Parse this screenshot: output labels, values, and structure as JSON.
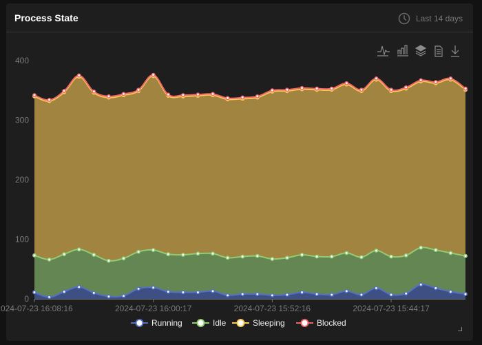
{
  "header": {
    "title": "Process State",
    "range_label": "Last 14 days",
    "range_icon": "clock-icon"
  },
  "toolbar": {
    "icons": [
      "line-chart-icon",
      "bar-chart-icon",
      "stack-icon",
      "data-view-icon",
      "download-icon"
    ]
  },
  "chart_data": {
    "type": "area",
    "stacked": true,
    "smooth": true,
    "ylim": [
      0,
      400
    ],
    "yticks": [
      "0",
      "100",
      "200",
      "300",
      "400"
    ],
    "xtick_labels": [
      "2024-07-23 16:08:16",
      "2024-07-23 16:00:17",
      "2024-07-23 15:52:16",
      "2024-07-23 15:44:17"
    ],
    "grid": false,
    "legend_position": "bottom",
    "series": [
      {
        "name": "Running",
        "color": "#5470c6",
        "values": [
          11,
          3,
          12,
          20,
          10,
          4,
          5,
          17,
          19,
          12,
          11,
          11,
          13,
          6,
          8,
          8,
          6,
          7,
          11,
          8,
          7,
          13,
          7,
          18,
          7,
          9,
          24,
          18,
          12,
          8
        ]
      },
      {
        "name": "Idle",
        "color": "#91cc75",
        "values": [
          62,
          63,
          63,
          63,
          64,
          60,
          63,
          62,
          63,
          63,
          63,
          65,
          63,
          63,
          63,
          64,
          61,
          62,
          63,
          63,
          64,
          64,
          63,
          63,
          64,
          64,
          62,
          64,
          65,
          64
        ]
      },
      {
        "name": "Sleeping",
        "color": "#fac858",
        "values": [
          267,
          266,
          272,
          290,
          272,
          274,
          274,
          270,
          292,
          266,
          266,
          265,
          266,
          266,
          265,
          266,
          281,
          280,
          278,
          280,
          280,
          283,
          279,
          287,
          278,
          280,
          279,
          280,
          291,
          279
        ]
      },
      {
        "name": "Blocked",
        "color": "#ee6666",
        "values": [
          2,
          2,
          2,
          2,
          2,
          2,
          2,
          2,
          2,
          2,
          2,
          2,
          2,
          2,
          2,
          2,
          2,
          2,
          2,
          2,
          2,
          2,
          2,
          2,
          2,
          2,
          2,
          2,
          2,
          2
        ]
      }
    ]
  }
}
